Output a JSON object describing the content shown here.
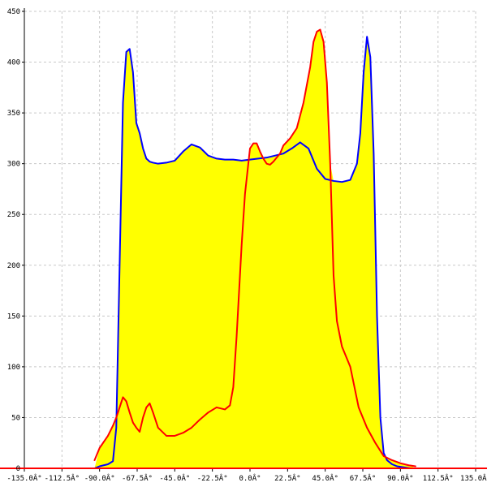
{
  "chart_data": {
    "type": "area",
    "title": "",
    "xlabel": "",
    "ylabel": "",
    "xlim": [
      -135,
      135
    ],
    "ylim": [
      0,
      450
    ],
    "grid": true,
    "x_ticks": [
      -135,
      -112.5,
      -90,
      -67.5,
      -45,
      -22.5,
      0,
      22.5,
      45,
      67.5,
      90,
      112.5,
      135
    ],
    "x_tick_labels": [
      "-135.0Â°",
      "-112.5Â°",
      "-90.0Â°",
      "-67.5Â°",
      "-45.0Â°",
      "-22.5Â°",
      "0.0Â°",
      "22.5Â°",
      "45.0Â°",
      "67.5Â°",
      "90.0Â°",
      "112.5Â°",
      "135.0Â°"
    ],
    "y_ticks": [
      0,
      50,
      100,
      150,
      200,
      250,
      300,
      350,
      400,
      450
    ],
    "y_tick_labels": [
      "0",
      "50",
      "100",
      "150",
      "200",
      "250",
      "300",
      "350",
      "400",
      "450"
    ],
    "fill_color": "#ffff00",
    "series": [
      {
        "color": "#0000ff",
        "x": [
          -93,
          -90,
          -85,
          -82,
          -80,
          -78,
          -76,
          -74,
          -72,
          -70,
          -68,
          -66,
          -64,
          -62,
          -60,
          -58,
          -55,
          -50,
          -45,
          -40,
          -35,
          -30,
          -25,
          -20,
          -15,
          -10,
          -5,
          0,
          5,
          10,
          15,
          20,
          25,
          30,
          35,
          40,
          45,
          50,
          55,
          60,
          64,
          66,
          68,
          70,
          72,
          74,
          76,
          78,
          80,
          82,
          85,
          88,
          92,
          96
        ],
        "y": [
          0,
          2,
          4,
          7,
          40,
          200,
          360,
          410,
          413,
          390,
          340,
          330,
          315,
          305,
          302,
          301,
          300,
          301,
          303,
          312,
          319,
          316,
          308,
          305,
          304,
          304,
          303,
          304,
          305,
          306,
          308,
          310,
          315,
          321,
          315,
          295,
          285,
          283,
          282,
          284,
          300,
          330,
          390,
          425,
          405,
          310,
          150,
          50,
          15,
          8,
          4,
          2,
          1,
          0
        ]
      },
      {
        "color": "#ff0000",
        "x": [
          -93,
          -90,
          -85,
          -82,
          -80,
          -78,
          -76,
          -74,
          -72,
          -70,
          -68,
          -66,
          -64,
          -62,
          -60,
          -58,
          -55,
          -50,
          -45,
          -40,
          -35,
          -30,
          -25,
          -20,
          -15,
          -12,
          -10,
          -8,
          -5,
          -3,
          -1,
          0,
          2,
          4,
          6,
          8,
          10,
          12,
          14,
          16,
          18,
          20,
          24,
          28,
          32,
          36,
          38,
          40,
          42,
          44,
          46,
          48,
          50,
          52,
          55,
          60,
          65,
          70,
          75,
          80,
          85,
          90,
          95,
          99
        ],
        "y": [
          8,
          20,
          32,
          42,
          50,
          60,
          70,
          66,
          55,
          45,
          40,
          36,
          50,
          60,
          64,
          55,
          40,
          32,
          32,
          35,
          40,
          48,
          55,
          60,
          58,
          62,
          80,
          130,
          220,
          270,
          300,
          315,
          320,
          320,
          312,
          305,
          300,
          299,
          302,
          306,
          310,
          318,
          325,
          335,
          360,
          395,
          420,
          430,
          432,
          420,
          380,
          300,
          190,
          145,
          120,
          100,
          60,
          40,
          25,
          12,
          8,
          5,
          3,
          2
        ]
      }
    ]
  }
}
